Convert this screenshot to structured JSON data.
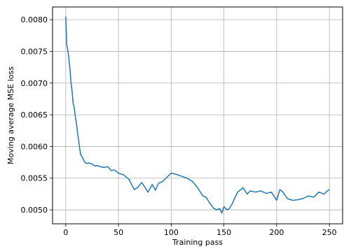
{
  "chart_data": {
    "type": "line",
    "title": "",
    "xlabel": "Training pass",
    "ylabel": "Moving average MSE loss",
    "xlim": [
      -12.5,
      262.5
    ],
    "ylim": [
      0.00478,
      0.0082
    ],
    "xticks": [
      0,
      50,
      100,
      150,
      200,
      250
    ],
    "xtick_labels": [
      "0",
      "50",
      "100",
      "150",
      "200",
      "250"
    ],
    "yticks": [
      0.005,
      0.0055,
      0.006,
      0.0065,
      0.007,
      0.0075,
      0.008
    ],
    "ytick_labels": [
      "0.0050",
      "0.0055",
      "0.0060",
      "0.0065",
      "0.0070",
      "0.0075",
      "0.0080"
    ],
    "grid": true,
    "legend": "none",
    "colors": {
      "line": "#1f77b4",
      "grid": "#b0b0b0",
      "axes": "#000000"
    },
    "series": [
      {
        "x": [
          0,
          1,
          2,
          3,
          4,
          5,
          6,
          7,
          8,
          9,
          10,
          12,
          14,
          16,
          18,
          20,
          22,
          25,
          28,
          30,
          33,
          36,
          40,
          43,
          46,
          50,
          55,
          60,
          65,
          68,
          72,
          75,
          78,
          82,
          85,
          88,
          92,
          95,
          100,
          105,
          110,
          115,
          120,
          125,
          130,
          133,
          136,
          140,
          143,
          146,
          148,
          150,
          153,
          155,
          158,
          160,
          163,
          166,
          168,
          172,
          175,
          180,
          185,
          190,
          195,
          200,
          203,
          206,
          210,
          215,
          220,
          225,
          230,
          235,
          240,
          245,
          248,
          250
        ],
        "y": [
          0.00805,
          0.0076,
          0.00752,
          0.00738,
          0.00722,
          0.007,
          0.00688,
          0.00668,
          0.00662,
          0.00648,
          0.00638,
          0.00612,
          0.00588,
          0.00582,
          0.00575,
          0.00573,
          0.00574,
          0.00572,
          0.00569,
          0.0057,
          0.00568,
          0.00567,
          0.00568,
          0.00562,
          0.00563,
          0.00558,
          0.00555,
          0.00548,
          0.00532,
          0.00535,
          0.00543,
          0.00536,
          0.00528,
          0.0054,
          0.00531,
          0.00542,
          0.00545,
          0.0055,
          0.00558,
          0.00556,
          0.00553,
          0.0055,
          0.00545,
          0.00535,
          0.00522,
          0.0052,
          0.00512,
          0.00503,
          0.005,
          0.00502,
          0.00495,
          0.00505,
          0.005,
          0.00502,
          0.0051,
          0.00518,
          0.00528,
          0.00532,
          0.00535,
          0.00525,
          0.0053,
          0.00528,
          0.0053,
          0.00526,
          0.00528,
          0.00515,
          0.00532,
          0.00528,
          0.00518,
          0.00515,
          0.00516,
          0.00518,
          0.00522,
          0.0052,
          0.00528,
          0.00525,
          0.0053,
          0.00532
        ]
      }
    ]
  }
}
